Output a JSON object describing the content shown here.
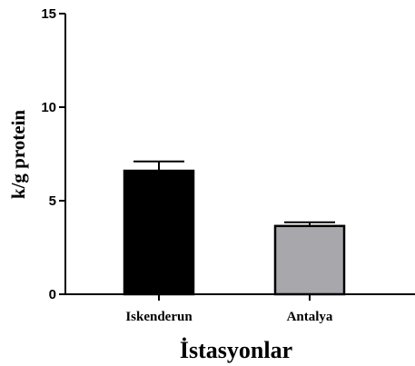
{
  "chart_data": {
    "type": "bar",
    "categories": [
      "Iskenderun",
      "Antalya"
    ],
    "values": [
      6.6,
      3.65
    ],
    "errors": [
      0.5,
      0.2
    ],
    "bar_colors": [
      "#000000",
      "#a8a8ac"
    ],
    "xlabel": "İstasyonlar",
    "ylabel": "k/g protein",
    "ylim": [
      0,
      15
    ],
    "yticks": [
      0,
      5,
      10,
      15
    ],
    "grid": false
  }
}
